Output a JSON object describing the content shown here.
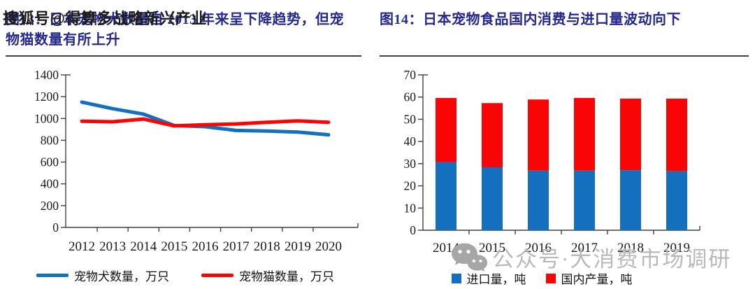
{
  "watermark_top": {
    "text": "搜狐号@得算多战略新兴产业"
  },
  "watermark_bottom": {
    "icon": "wechat-icon",
    "text": "公众号·大消费市场调研"
  },
  "figures": {
    "fig13": {
      "title": "图13：日本宠物犬数量自 2013 年来呈下降趋势，但宠物猫数量有所上升"
    },
    "fig14": {
      "title": "图14：日本宠物食品国内消费与进口量波动向下"
    }
  },
  "colors": {
    "series_blue": "#1470BE",
    "series_red": "#FA0505",
    "title_navy": "#23278F",
    "axis_line": "#404040",
    "axis_ink": "#1A1A1A",
    "watermark_gray": "#B9B9B9",
    "rule_gray": "#3F3F3F"
  },
  "chart_data": [
    {
      "type": "line",
      "title": "图13：日本宠物犬数量自 2013 年来呈下降趋势，但宠物猫数量有所上升",
      "categories": [
        "2012",
        "2013",
        "2014",
        "2015",
        "2016",
        "2017",
        "2018",
        "2019",
        "2020"
      ],
      "series": [
        {
          "name": "宠物犬数量，万只",
          "color": "#1470BE",
          "values": [
            1150,
            1090,
            1040,
            935,
            925,
            890,
            885,
            875,
            850
          ]
        },
        {
          "name": "宠物猫数量，万只",
          "color": "#FA0505",
          "values": [
            975,
            970,
            995,
            932,
            942,
            950,
            965,
            978,
            965
          ]
        }
      ],
      "xlabel": "",
      "ylabel": "",
      "ylim": [
        0,
        1400
      ],
      "ytick_step": 200,
      "grid": false,
      "legend_position": "bottom"
    },
    {
      "type": "bar",
      "stacked": true,
      "title": "图14：日本宠物食品国内消费与进口量波动向下",
      "categories": [
        "2014",
        "2015",
        "2016",
        "2017",
        "2018",
        "2019"
      ],
      "series": [
        {
          "name": "进口量，吨",
          "color": "#1470BE",
          "values": [
            30.7,
            28.4,
            26.9,
            26.9,
            27.1,
            26.6
          ]
        },
        {
          "name": "国内产量，吨",
          "color": "#FA0505",
          "values": [
            28.9,
            28.9,
            32.0,
            32.7,
            32.2,
            32.7
          ]
        }
      ],
      "xlabel": "",
      "ylabel": "",
      "ylim": [
        0,
        70
      ],
      "ytick_step": 10,
      "grid": false,
      "legend_position": "bottom"
    }
  ]
}
